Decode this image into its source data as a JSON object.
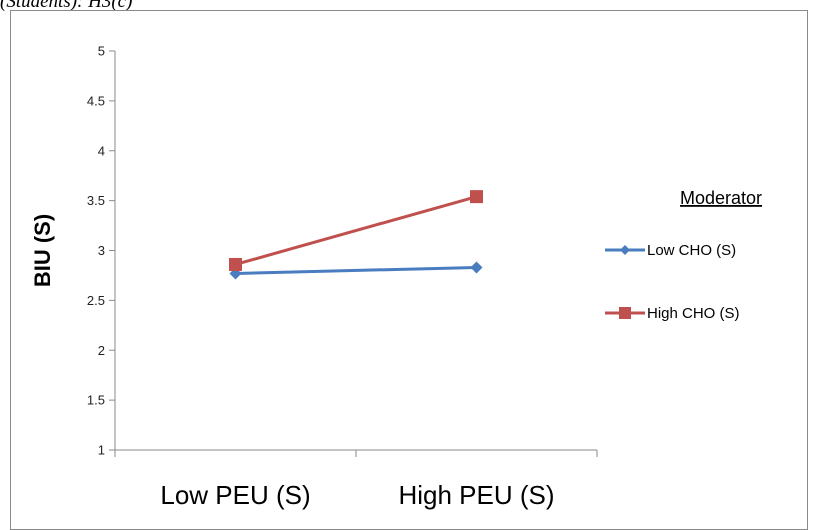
{
  "caption": "(Students): H3(c)",
  "chart_data": {
    "type": "line",
    "title": "",
    "xlabel": "",
    "ylabel": "BIU (S)",
    "categories": [
      "Low PEU (S)",
      "High PEU (S)"
    ],
    "ylim": [
      1,
      5
    ],
    "yticks": [
      "1",
      "1.5",
      "2",
      "2.5",
      "3",
      "3.5",
      "4",
      "4.5",
      "5"
    ],
    "grid": false,
    "legend": {
      "title": "Moderator",
      "position": "right"
    },
    "series": [
      {
        "name": "Low CHO (S)",
        "values": [
          2.77,
          2.83
        ],
        "color": "#4a7cc0",
        "marker": "diamond"
      },
      {
        "name": "High CHO (S)",
        "values": [
          2.86,
          3.54
        ],
        "color": "#c0504d",
        "marker": "square"
      }
    ]
  }
}
